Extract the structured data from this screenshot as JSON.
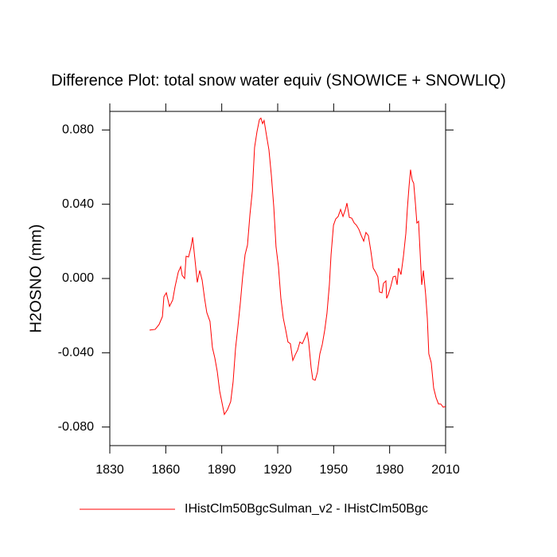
{
  "chart_data": {
    "type": "line",
    "title": "Difference Plot: total snow water equiv (SNOWICE + SNOWLIQ)",
    "y_label": "H2OSNO  (mm)",
    "x": [
      1851.3,
      1854.3,
      1856.4,
      1858.2,
      1859.0,
      1860.3,
      1862.0,
      1863.7,
      1865.0,
      1866.7,
      1868.0,
      1868.8,
      1870.1,
      1870.9,
      1872.2,
      1873.5,
      1874.4,
      1875.6,
      1876.9,
      1878.2,
      1879.5,
      1880.8,
      1882.0,
      1883.7,
      1885.0,
      1886.3,
      1887.6,
      1888.9,
      1890.1,
      1891.4,
      1893.1,
      1894.8,
      1896.1,
      1897.4,
      1898.7,
      1900.0,
      1901.2,
      1902.5,
      1903.8,
      1905.1,
      1906.4,
      1907.6,
      1908.9,
      1910.2,
      1911.0,
      1911.9,
      1912.7,
      1914.0,
      1915.3,
      1916.6,
      1917.9,
      1919.1,
      1920.4,
      1921.7,
      1923.0,
      1924.3,
      1925.5,
      1926.8,
      1928.1,
      1929.4,
      1930.7,
      1931.9,
      1933.2,
      1934.5,
      1935.8,
      1936.6,
      1937.9,
      1938.8,
      1940.1,
      1941.3,
      1942.6,
      1943.9,
      1945.2,
      1946.4,
      1947.7,
      1948.6,
      1949.9,
      1951.1,
      1952.4,
      1953.7,
      1955.0,
      1956.3,
      1957.1,
      1958.4,
      1959.7,
      1961.0,
      1962.2,
      1963.5,
      1964.8,
      1966.1,
      1967.3,
      1968.6,
      1969.9,
      1971.2,
      1972.5,
      1973.7,
      1974.6,
      1975.9,
      1976.7,
      1978.0,
      1978.4,
      1979.3,
      1980.6,
      1981.9,
      1983.1,
      1984.0,
      1984.8,
      1986.1,
      1987.4,
      1988.7,
      1989.5,
      1990.4,
      1991.2,
      1992.1,
      1992.9,
      1993.8,
      1994.6,
      1995.5,
      1996.4,
      1997.2,
      1998.1,
      1999.3,
      2000.2,
      2001.0,
      2002.3,
      2003.6,
      2004.9,
      2006.2,
      2007.4,
      2008.7,
      2010.0
    ],
    "series": [
      {
        "name": "IHistClm50BgcSulman_v2 - IHistClm50Bgc",
        "color": "#ff0000",
        "values": [
          -0.0278,
          -0.0274,
          -0.0248,
          -0.0205,
          -0.0098,
          -0.0077,
          -0.015,
          -0.0116,
          -0.0043,
          0.0034,
          0.0064,
          0.0017,
          0.0,
          0.012,
          0.0116,
          0.0167,
          0.0222,
          0.0107,
          -0.0021,
          0.0043,
          -0.0009,
          -0.0107,
          -0.0184,
          -0.0231,
          -0.0372,
          -0.0428,
          -0.0501,
          -0.0607,
          -0.0667,
          -0.0732,
          -0.0706,
          -0.0663,
          -0.0556,
          -0.0376,
          -0.0257,
          -0.0128,
          0.0009,
          0.0128,
          0.018,
          0.0342,
          0.0471,
          0.0706,
          0.0791,
          0.0856,
          0.0864,
          0.0834,
          0.0851,
          0.077,
          0.0693,
          0.0556,
          0.0385,
          0.0171,
          0.0064,
          -0.0107,
          -0.0214,
          -0.0278,
          -0.0342,
          -0.0351,
          -0.0441,
          -0.0411,
          -0.0385,
          -0.0342,
          -0.0351,
          -0.0321,
          -0.0291,
          -0.0342,
          -0.0479,
          -0.0543,
          -0.0548,
          -0.0505,
          -0.0406,
          -0.0355,
          -0.0278,
          -0.0188,
          -0.0034,
          0.0128,
          0.0287,
          0.0321,
          0.0334,
          0.0372,
          0.0334,
          0.0372,
          0.0406,
          0.0329,
          0.0325,
          0.0299,
          0.0287,
          0.0265,
          0.0231,
          0.0201,
          0.0248,
          0.0231,
          0.015,
          0.0056,
          0.0034,
          0.0009,
          -0.0073,
          -0.0077,
          -0.0026,
          -0.0013,
          -0.0107,
          -0.0086,
          -0.0043,
          0.0009,
          0.0013,
          -0.0034,
          0.0056,
          0.0021,
          0.012,
          0.0244,
          0.0376,
          0.0496,
          0.0586,
          0.053,
          0.0513,
          0.0406,
          0.0299,
          0.0308,
          0.0128,
          -0.0034,
          0.0043,
          -0.0086,
          -0.0214,
          -0.0406,
          -0.0453,
          -0.059,
          -0.0642,
          -0.0676,
          -0.0676,
          -0.0693,
          -0.0689
        ]
      }
    ],
    "xlim": [
      1830,
      2010
    ],
    "xticks": [
      1830,
      1860,
      1890,
      1920,
      1950,
      1980,
      2010
    ],
    "ylim": [
      -0.09,
      0.09
    ],
    "yticks": [
      {
        "value": -0.08,
        "label": "-0.080"
      },
      {
        "value": -0.04,
        "label": "-0.040"
      },
      {
        "value": 0,
        "label": "0.000"
      },
      {
        "value": 0.04,
        "label": "0.040"
      },
      {
        "value": 0.08,
        "label": "0.080"
      }
    ],
    "grid": false
  }
}
